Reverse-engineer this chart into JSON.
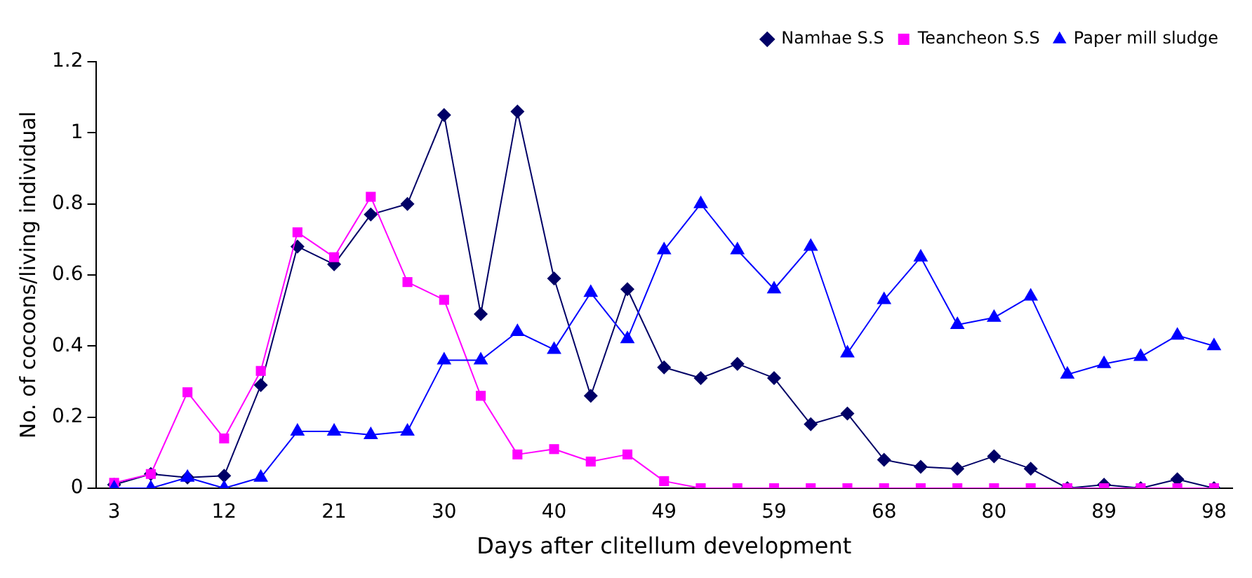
{
  "chart_data": {
    "type": "line",
    "xlabel": "Days after clitellum development",
    "ylabel": "No. of cocoons/living individual",
    "categories": [
      "3",
      null,
      null,
      "12",
      null,
      null,
      "21",
      null,
      null,
      "30",
      null,
      null,
      "40",
      null,
      null,
      "49",
      null,
      null,
      "59",
      null,
      null,
      "68",
      null,
      null,
      "80",
      null,
      null,
      "89",
      null,
      null,
      "98"
    ],
    "series": [
      {
        "name": "Namhae S.S",
        "color": "#000066",
        "marker": "diamond",
        "values": [
          0.01,
          0.04,
          0.03,
          0.035,
          0.29,
          0.68,
          0.63,
          0.77,
          0.8,
          1.05,
          0.49,
          1.06,
          0.59,
          0.26,
          0.56,
          0.34,
          0.31,
          0.35,
          0.31,
          0.18,
          0.21,
          0.08,
          0.06,
          0.055,
          0.09,
          0.055,
          0,
          0.01,
          0,
          0.025,
          0
        ]
      },
      {
        "name": "Teancheon S.S",
        "color": "#ff00ff",
        "marker": "square",
        "values": [
          0.015,
          0.04,
          0.27,
          0.14,
          0.33,
          0.72,
          0.65,
          0.82,
          0.58,
          0.53,
          0.26,
          0.095,
          0.11,
          0.075,
          0.095,
          0.02,
          0,
          0,
          0,
          0,
          0,
          0,
          0,
          0,
          0,
          0,
          0,
          0,
          0,
          0,
          0
        ]
      },
      {
        "name": "Paper mill sludge",
        "color": "#0000ff",
        "marker": "triangle",
        "values": [
          0,
          0,
          0.03,
          0,
          0.03,
          0.16,
          0.16,
          0.15,
          0.16,
          0.36,
          0.36,
          0.44,
          0.39,
          0.55,
          0.42,
          0.67,
          0.8,
          0.67,
          0.56,
          0.68,
          0.38,
          0.53,
          0.65,
          0.46,
          0.48,
          0.54,
          0.32,
          0.35,
          0.37,
          0.43,
          0.4
        ]
      }
    ],
    "ylim": [
      0,
      1.2
    ],
    "yticks": [
      0,
      0.2,
      0.4,
      0.6,
      0.8,
      1,
      1.2
    ],
    "grid": false,
    "legend": "top right",
    "line_style": "solid"
  }
}
